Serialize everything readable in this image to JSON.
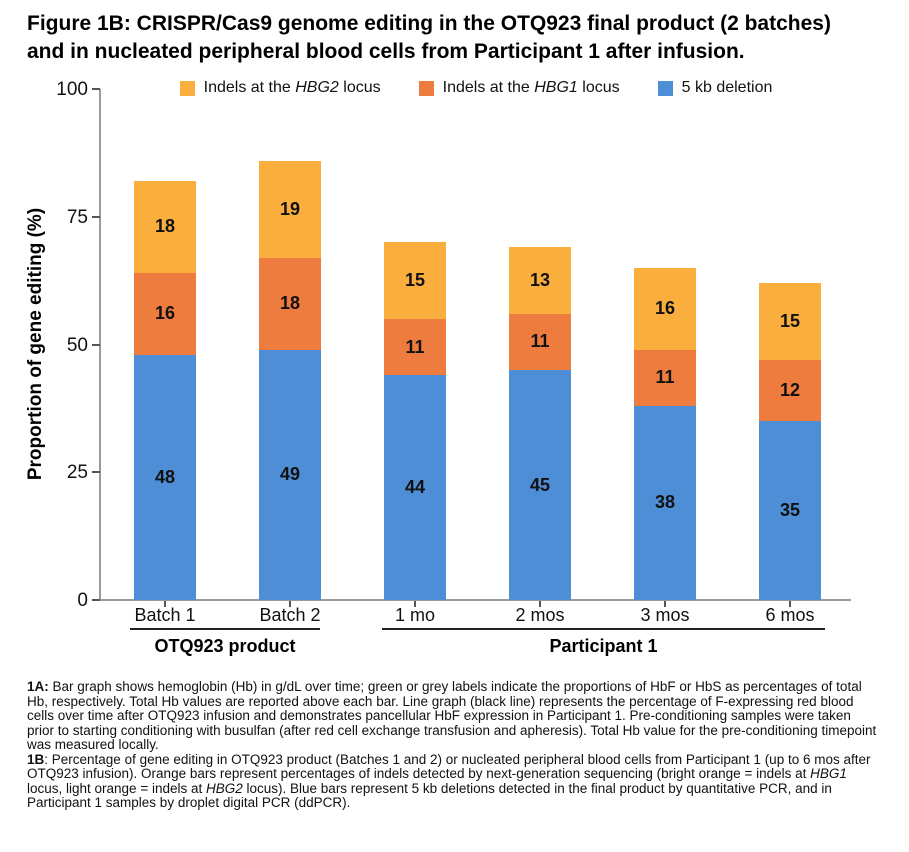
{
  "title": {
    "line1": "Figure 1B: CRISPR/Cas9 genome editing in the OTQ923 final product (2 batches)",
    "line2": "and in nucleated peripheral blood cells from Participant 1 after infusion."
  },
  "colors": {
    "hbg2_light_orange": "#FAAE3D",
    "hbg1_bright_orange": "#EE7C3E",
    "deletion_blue": "#4E8ED6",
    "axis_gray": "#9a9a9a"
  },
  "legend": {
    "items": [
      {
        "color": "hbg2_light_orange",
        "segments": [
          {
            "t": "Indels at the "
          },
          {
            "t": "HBG2",
            "i": 1
          },
          {
            "t": " locus"
          }
        ]
      },
      {
        "color": "hbg1_bright_orange",
        "segments": [
          {
            "t": "Indels at the "
          },
          {
            "t": "HBG1",
            "i": 1
          },
          {
            "t": " locus"
          }
        ]
      },
      {
        "color": "deletion_blue",
        "segments": [
          {
            "t": "5 kb deletion"
          }
        ]
      }
    ]
  },
  "chart_data": {
    "type": "bar",
    "stacked": true,
    "title": "",
    "ylabel": "Proportion of gene editing (%)",
    "xlabel": "",
    "ylim": [
      0,
      100
    ],
    "yticks": [
      0,
      25,
      50,
      75,
      100
    ],
    "grid": false,
    "legend_position": "top",
    "categories": [
      "Batch 1",
      "Batch 2",
      "1 mo",
      "2 mos",
      "3 mos",
      "6 mos"
    ],
    "groups": [
      {
        "label": "OTQ923 product",
        "span": [
          0,
          1
        ]
      },
      {
        "label": "Participant 1",
        "span": [
          2,
          5
        ]
      }
    ],
    "series": [
      {
        "name": "5 kb deletion",
        "color": "deletion_blue",
        "values": [
          48,
          49,
          44,
          45,
          38,
          35
        ]
      },
      {
        "name": "Indels at the HBG1 locus",
        "color": "hbg1_bright_orange",
        "values": [
          16,
          18,
          11,
          11,
          11,
          12
        ]
      },
      {
        "name": "Indels at the HBG2 locus",
        "color": "hbg2_light_orange",
        "values": [
          18,
          19,
          15,
          13,
          16,
          15
        ]
      }
    ]
  },
  "captions": [
    {
      "segments": [
        {
          "t": "1A:",
          "b": 1
        },
        {
          "t": " Bar graph shows hemoglobin (Hb) in g/dL over time; green or grey labels indicate the proportions of HbF or HbS as percentages of total Hb, respectively. Total Hb values are reported above each bar. Line graph (black line) represents the percentage of F-expressing red blood cells over time after OTQ923 infusion and demonstrates pancellular HbF expression in Participant 1. Pre-conditioning samples were taken prior to starting conditioning with busulfan (after red cell exchange transfusion and apheresis). Total Hb value for the pre-conditioning timepoint was measured locally."
        }
      ]
    },
    {
      "segments": [
        {
          "t": "1B",
          "b": 1
        },
        {
          "t": ": Percentage of gene editing in OTQ923 product (Batches 1 and 2) or nucleated peripheral blood cells from Participant 1 (up to 6 mos after OTQ923 infusion). Orange bars represent percentages of indels detected by next-generation sequencing (bright orange = indels at "
        },
        {
          "t": "HBG1",
          "i": 1
        },
        {
          "t": " locus, light orange = indels at "
        },
        {
          "t": "HBG2",
          "i": 1
        },
        {
          "t": " locus). Blue bars represent 5 kb deletions detected in the final product by quantitative PCR, and in Participant 1 samples by droplet digital PCR (ddPCR)."
        }
      ]
    }
  ]
}
